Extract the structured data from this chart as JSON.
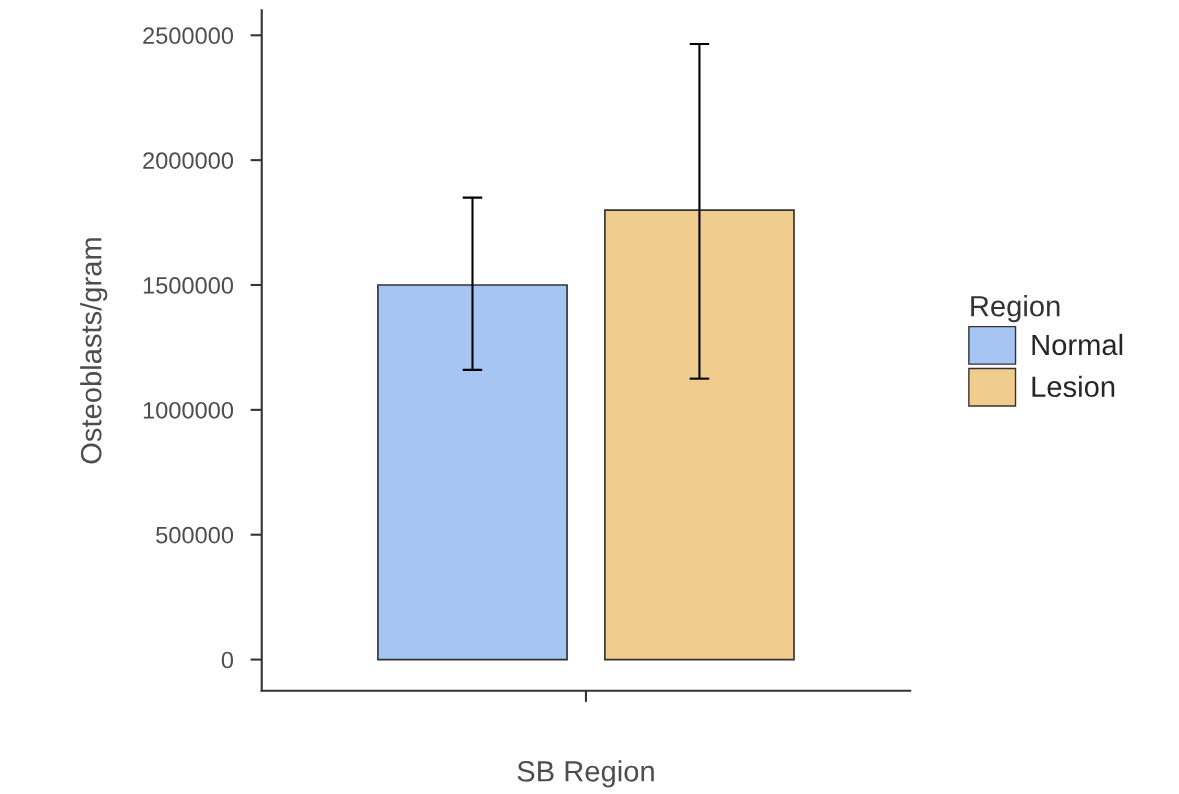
{
  "chart_data": {
    "type": "bar",
    "xlabel": "SB Region",
    "ylabel": "Osteoblasts/gram",
    "legend_title": "Region",
    "legend": "right",
    "grid": false,
    "categories": [
      null
    ],
    "series": [
      {
        "name": "Normal",
        "color": "#a7c5f2",
        "values": [
          1500000
        ],
        "errors": [
          [
            1160000,
            1850000
          ]
        ]
      },
      {
        "name": "Lesion",
        "color": "#f0cd8e",
        "values": [
          1800000
        ],
        "errors": [
          [
            1125000,
            2465000
          ]
        ]
      }
    ],
    "ylim": [
      -125000,
      2600000
    ],
    "yticks": [
      0,
      500000,
      1000000,
      1500000,
      2000000,
      2500000
    ]
  }
}
